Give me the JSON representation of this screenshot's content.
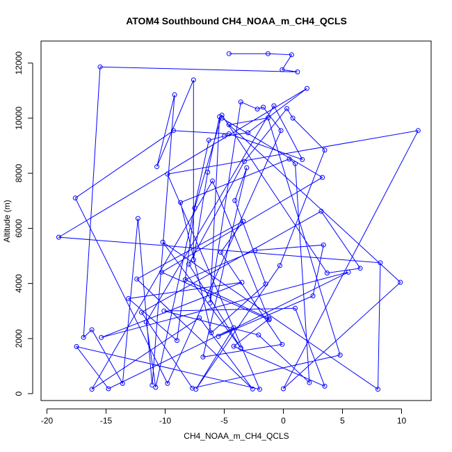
{
  "chart_data": {
    "type": "line",
    "title": "ATOM4 Southbound CH4_NOAA_m_CH4_QCLS",
    "xlabel": "CH4_NOAA_m_CH4_QCLS",
    "ylabel": "Altitude (m)",
    "xlim": [
      -20.5,
      12.5
    ],
    "ylim": [
      -250,
      12800
    ],
    "xticks": [
      -20,
      -15,
      -10,
      -5,
      0,
      5,
      10
    ],
    "yticks": [
      0,
      2000,
      4000,
      6000,
      8000,
      10000,
      12000
    ],
    "grid": false,
    "legend": "none",
    "series_color": "#0000ff",
    "x": [
      -4.6,
      -1.3,
      0.7,
      -0.1,
      1.2,
      -15.5,
      -16.9,
      -16.2,
      -13.6,
      -12.3,
      -11.1,
      -9.2,
      -10.7,
      -7.6,
      -7.6,
      -6.4,
      -5.4,
      -6.2,
      -3.6,
      -2.2,
      -1.7,
      -0.2,
      -9.8,
      -17.6,
      -9.3,
      -4.6,
      1.6,
      -0.8,
      -11.6,
      -10.8,
      -6.3,
      -5.0,
      -3.0,
      2.0,
      -19.0,
      8.2,
      8.0,
      -10.2,
      -3.6,
      -8.0,
      -3.3,
      0.3,
      0.8,
      3.5,
      -0.3,
      -7.4,
      -4.2,
      -14.8,
      -17.5,
      -2.0,
      -9.8,
      11.4,
      0.0,
      9.9,
      -4.6,
      -1.3,
      4.8,
      -7.7,
      -12.0,
      3.2,
      6.5,
      3.7,
      -5.2,
      -7.5,
      -9.0,
      -13.1,
      -3.5,
      -15.4,
      5.5,
      -5.5,
      2.5,
      3.4,
      -2.4,
      -8.3,
      -1.2,
      -4.2,
      3.5,
      1.0,
      -10.1,
      -2.1,
      2.2,
      1.0,
      0.5,
      -8.7,
      -6.1,
      -1.5,
      -4.1,
      -3.1,
      -6.8,
      -0.1,
      -5.3,
      -3.4,
      -12.4,
      -2.6,
      -7.1,
      -16.2,
      -6.0,
      -1.2,
      -10.3,
      3.3,
      -5.2
    ],
    "y": [
      12340,
      12340,
      12300,
      11760,
      11680,
      11860,
      2040,
      2320,
      370,
      6360,
      310,
      10850,
      8240,
      11390,
      4860,
      8040,
      10050,
      3290,
      10590,
      10330,
      10400,
      9550,
      370,
      7100,
      9550,
      9430,
      8500,
      10450,
      2600,
      230,
      9200,
      9350,
      9470,
      11080,
      5680,
      4750,
      160,
      5500,
      1660,
      4700,
      8430,
      10350,
      10000,
      8840,
      4650,
      160,
      2390,
      180,
      1710,
      160,
      7970,
      9550,
      180,
      4040,
      9760,
      10010,
      1400,
      200,
      2950,
      6620,
      4550,
      4380,
      10110,
      6740,
      1930,
      3450,
      4040,
      2040,
      4410,
      2080,
      3550,
      5400,
      5200,
      4140,
      2720,
      1720,
      270,
      3100,
      3000,
      2130,
      400,
      8350,
      8520,
      6940,
      2210,
      3980,
      7010,
      8200,
      1330,
      1790,
      5130,
      6260,
      4160,
      170,
      2750,
      160,
      7720,
      2680,
      4410,
      7850,
      10000
    ]
  }
}
